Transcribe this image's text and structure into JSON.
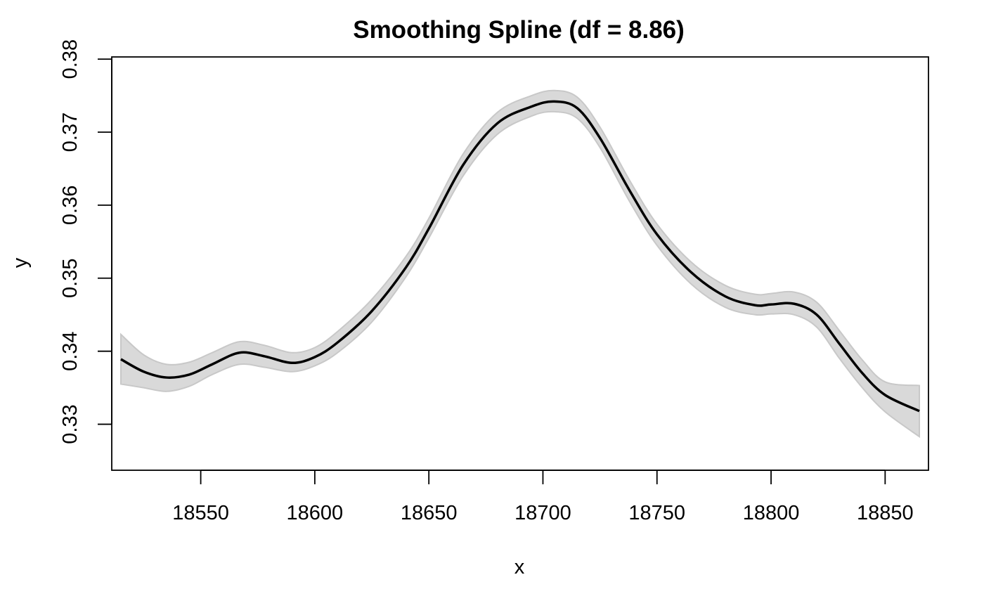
{
  "chart_data": {
    "type": "line",
    "title": "Smoothing Spline (df = 8.86)",
    "xlabel": "x",
    "ylabel": "y",
    "xlim": [
      18511,
      18869
    ],
    "ylim": [
      0.3237,
      0.3803
    ],
    "xticks": [
      "18550",
      "18600",
      "18650",
      "18700",
      "18750",
      "18800",
      "18850"
    ],
    "yticks": [
      "0.33",
      "0.34",
      "0.35",
      "0.36",
      "0.37",
      "0.38"
    ],
    "grid": false,
    "legend": "none",
    "colors": {
      "line": "#000000",
      "band": "#d9d9d9",
      "band_edge": "#c8c8c8"
    },
    "series": [
      {
        "x": [
          18515,
          18525,
          18535,
          18545,
          18555,
          18567,
          18578,
          18590,
          18600,
          18610,
          18625,
          18640,
          18650,
          18665,
          18680,
          18695,
          18705,
          18715,
          18725,
          18738,
          18750,
          18765,
          18780,
          18793,
          18800,
          18810,
          18820,
          18830,
          18840,
          18850,
          18865
        ],
        "y": [
          0.3389,
          0.3372,
          0.3364,
          0.3368,
          0.3382,
          0.3398,
          0.3393,
          0.3384,
          0.3392,
          0.3412,
          0.3455,
          0.3515,
          0.3568,
          0.3655,
          0.3712,
          0.3735,
          0.3742,
          0.3733,
          0.3692,
          0.362,
          0.356,
          0.3508,
          0.3475,
          0.3463,
          0.3464,
          0.3465,
          0.345,
          0.341,
          0.337,
          0.334,
          0.3318
        ],
        "lower": [
          0.3355,
          0.335,
          0.3345,
          0.3352,
          0.3368,
          0.3382,
          0.3378,
          0.3372,
          0.338,
          0.3398,
          0.344,
          0.3502,
          0.3555,
          0.364,
          0.3697,
          0.3722,
          0.3728,
          0.3719,
          0.3679,
          0.3605,
          0.3545,
          0.3492,
          0.346,
          0.345,
          0.3451,
          0.345,
          0.3433,
          0.339,
          0.335,
          0.3317,
          0.3283
        ],
        "upper": [
          0.3423,
          0.3395,
          0.3382,
          0.3385,
          0.3398,
          0.3413,
          0.3408,
          0.3398,
          0.3405,
          0.3427,
          0.3471,
          0.353,
          0.3582,
          0.367,
          0.3727,
          0.375,
          0.3757,
          0.3748,
          0.3707,
          0.3634,
          0.3574,
          0.3522,
          0.349,
          0.3478,
          0.3479,
          0.3481,
          0.3467,
          0.3428,
          0.3388,
          0.3358,
          0.3353
        ]
      }
    ]
  }
}
